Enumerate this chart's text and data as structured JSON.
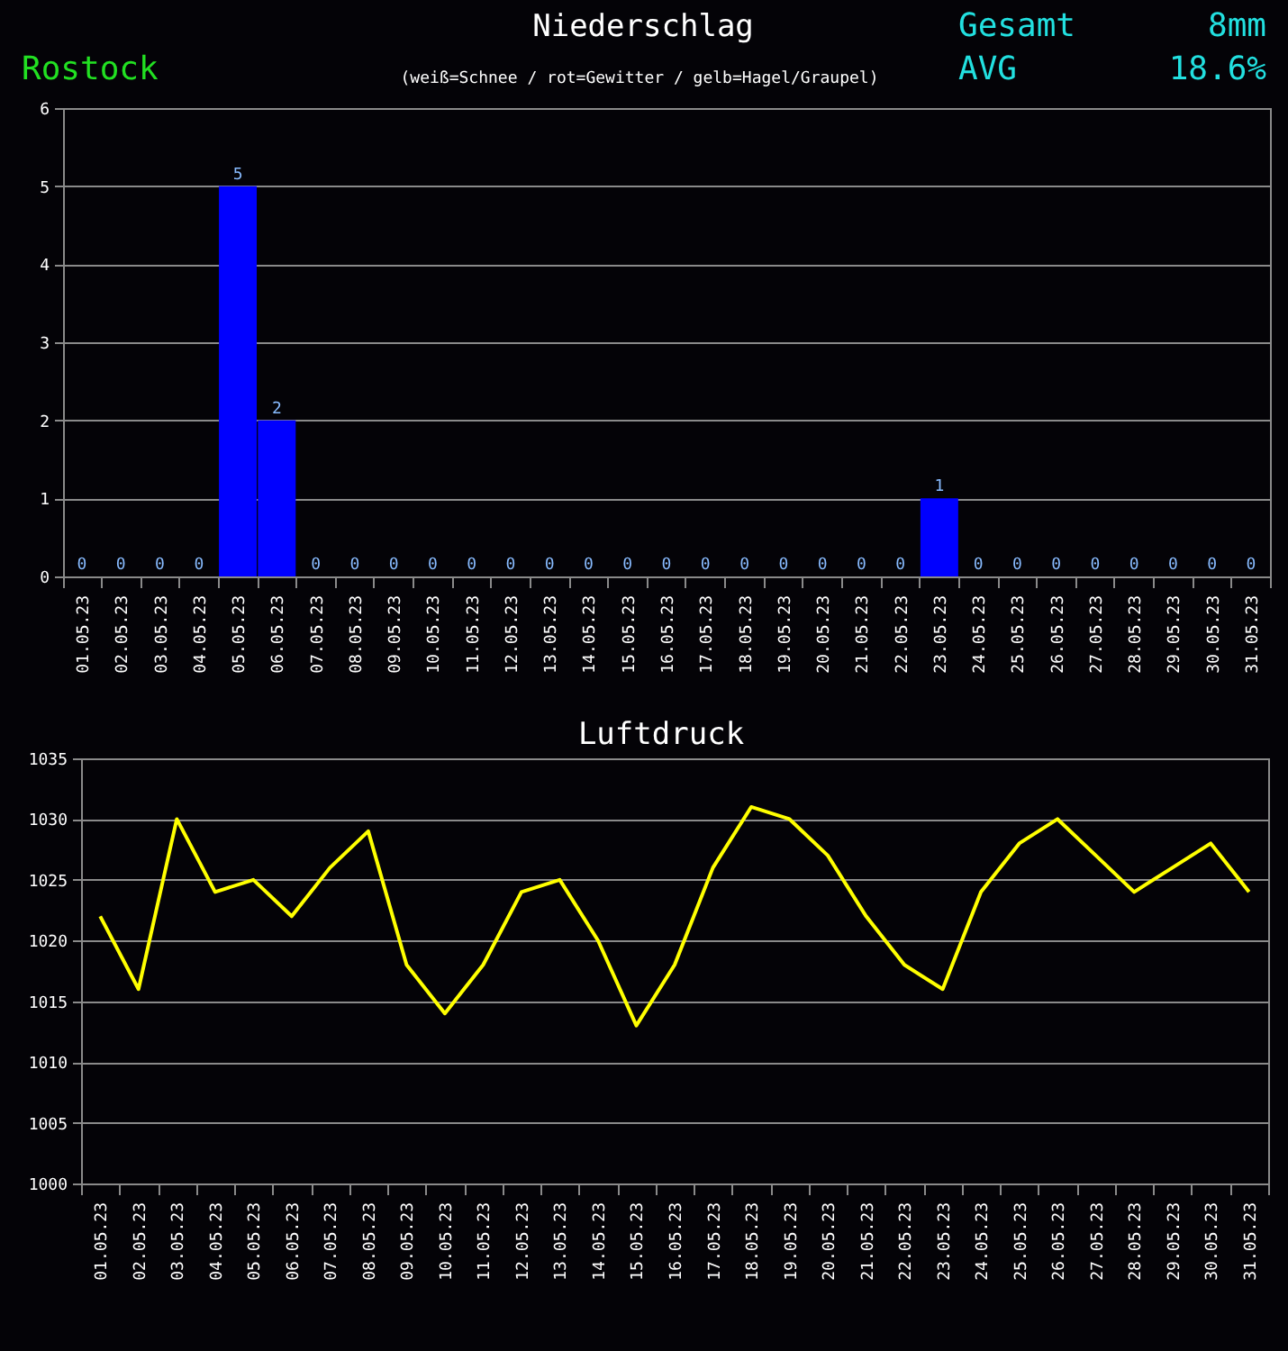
{
  "chart_data": [
    {
      "type": "bar",
      "title": "Niederschlag",
      "subtitle": "(weiß=Schnee / rot=Gewitter / gelb=Hagel/Graupel)",
      "annotations": [
        "Rostock",
        "Gesamt",
        "8mm",
        "AVG",
        "18.6%"
      ],
      "categories": [
        "01.05.23",
        "02.05.23",
        "03.05.23",
        "04.05.23",
        "05.05.23",
        "06.05.23",
        "07.05.23",
        "08.05.23",
        "09.05.23",
        "10.05.23",
        "11.05.23",
        "12.05.23",
        "13.05.23",
        "14.05.23",
        "15.05.23",
        "16.05.23",
        "17.05.23",
        "18.05.23",
        "19.05.23",
        "20.05.23",
        "21.05.23",
        "22.05.23",
        "23.05.23",
        "24.05.23",
        "25.05.23",
        "26.05.23",
        "27.05.23",
        "28.05.23",
        "29.05.23",
        "30.05.23",
        "31.05.23"
      ],
      "values": [
        0,
        0,
        0,
        0,
        5,
        2,
        0,
        0,
        0,
        0,
        0,
        0,
        0,
        0,
        0,
        0,
        0,
        0,
        0,
        0,
        0,
        0,
        1,
        0,
        0,
        0,
        0,
        0,
        0,
        0,
        0
      ],
      "color": "#0000ff",
      "ylim": [
        0,
        6
      ],
      "yticks": [
        0,
        1,
        2,
        3,
        4,
        5,
        6
      ],
      "grid": "y",
      "data_labels": true
    },
    {
      "type": "line",
      "title": "Luftdruck",
      "categories": [
        "01.05.23",
        "02.05.23",
        "03.05.23",
        "04.05.23",
        "05.05.23",
        "06.05.23",
        "07.05.23",
        "08.05.23",
        "09.05.23",
        "10.05.23",
        "11.05.23",
        "12.05.23",
        "13.05.23",
        "14.05.23",
        "15.05.23",
        "16.05.23",
        "17.05.23",
        "18.05.23",
        "19.05.23",
        "20.05.23",
        "21.05.23",
        "22.05.23",
        "23.05.23",
        "24.05.23",
        "25.05.23",
        "26.05.23",
        "27.05.23",
        "28.05.23",
        "29.05.23",
        "30.05.23",
        "31.05.23"
      ],
      "values": [
        1022,
        1016,
        1030,
        1024,
        1025,
        1022,
        1026,
        1029,
        1018,
        1014,
        1018,
        1024,
        1025,
        1020,
        1013,
        1018,
        1026,
        1031,
        1030,
        1027,
        1022,
        1018,
        1016,
        1024,
        1028,
        1030,
        1027,
        1024,
        1026,
        1028,
        1024
      ],
      "color": "#ffff00",
      "ylim": [
        1000,
        1035
      ],
      "yticks": [
        1000,
        1005,
        1010,
        1015,
        1020,
        1025,
        1030,
        1035
      ],
      "grid": "y",
      "marker": "none"
    }
  ]
}
